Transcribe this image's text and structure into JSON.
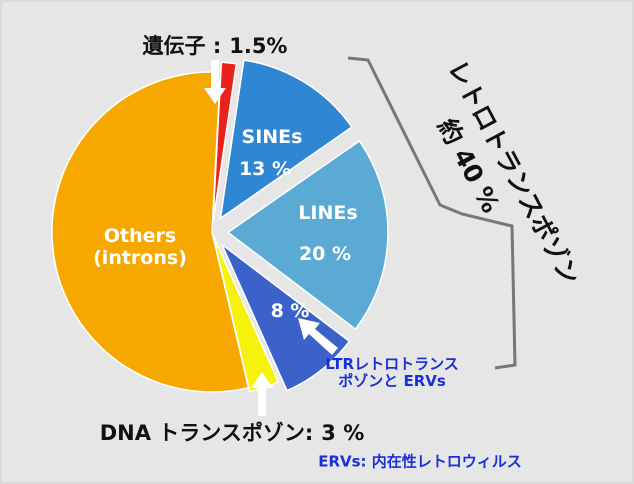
{
  "chart_data": {
    "type": "pie",
    "categories": [
      "遺伝子 :",
      "SINEs",
      "LINEs",
      "LTRレトロトランス\nポゾンと ERVs",
      "DNA トランスポゾン:",
      "Others\n(introns)"
    ],
    "values": [
      1.5,
      13,
      20,
      8,
      3,
      54.5
    ],
    "value_labels": [
      "1.5%",
      "13 %",
      "20 %",
      "8 %",
      "3 %",
      null
    ],
    "colors": [
      "#e8231a",
      "#2f86d2",
      "#5aaad4",
      "#3a62c9",
      "#f7f20c",
      "#f6a700"
    ],
    "annotations": {
      "group_label": "レトロトランスポゾン",
      "group_total": "約 40 %",
      "footnote": "ERVs: 内在性レトロウィルス"
    }
  }
}
